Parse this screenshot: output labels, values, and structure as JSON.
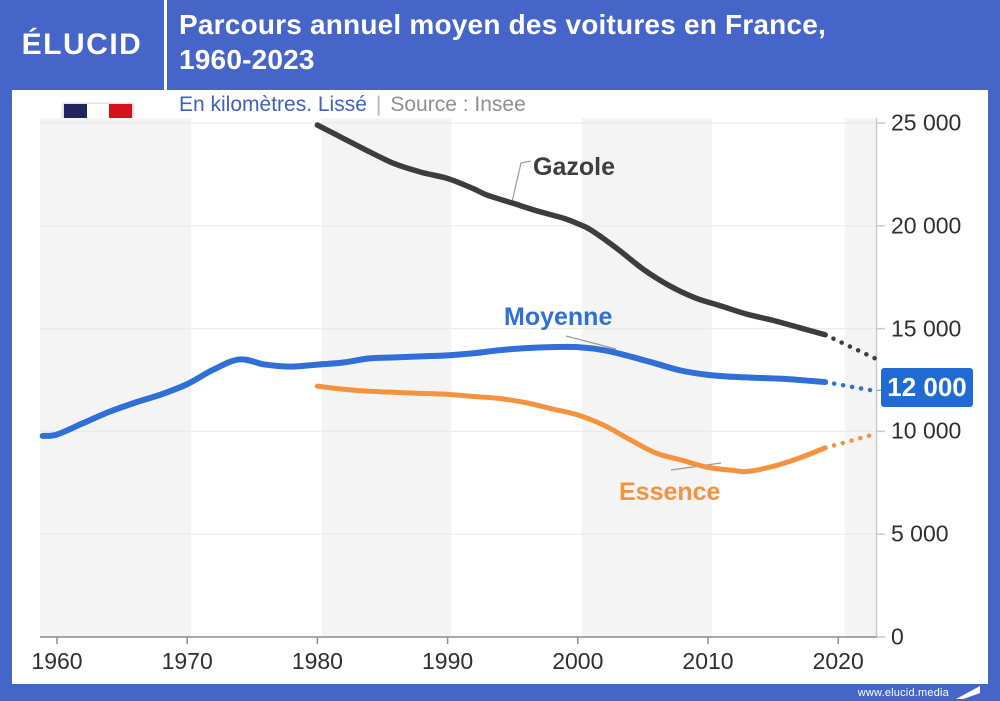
{
  "header": {
    "logo": "ÉLUCID",
    "title_line1": "Parcours annuel moyen des voitures en France,",
    "title_line2": "1960-2023"
  },
  "subtitle": {
    "unit": "En kilomètres. Lissé",
    "separator": "|",
    "source": "Source : Insee"
  },
  "footer": {
    "url": "www.elucid.media"
  },
  "colors": {
    "banner_blue": "#4565c9",
    "highlight_blue": "#1f6bd3",
    "moyenne_blue": "#2f6fd6",
    "essence_orange": "#f5923e",
    "gazole_dark": "#3d3d3d",
    "subtitle_blue": "#4060c0",
    "muted_gray": "#8e8e93",
    "band_gray": "#f4f4f5",
    "flag_navy": "#23265e",
    "flag_red": "#d6101f"
  },
  "chart_data": {
    "type": "line",
    "title": "Parcours annuel moyen des voitures en France, 1960-2023",
    "ylabel": "kilomètres par an",
    "source": "Insee",
    "xlim": [
      1958.8,
      2023.6
    ],
    "ylim": [
      0,
      25000
    ],
    "grid": true,
    "x_ticks": [
      1960,
      1970,
      1980,
      1990,
      2000,
      2010,
      2020
    ],
    "y_ticks": [
      {
        "value": 0,
        "label": "0"
      },
      {
        "value": 5000,
        "label": "5 000"
      },
      {
        "value": 10000,
        "label": "10 000"
      },
      {
        "value": 15000,
        "label": "15 000"
      },
      {
        "value": 20000,
        "label": "20 000"
      },
      {
        "value": 25000,
        "label": "25 000"
      }
    ],
    "series": [
      {
        "name": "Gazole",
        "style": "solid_then_dotted",
        "points": [
          [
            1980,
            24900
          ],
          [
            1982,
            24250
          ],
          [
            1984,
            23600
          ],
          [
            1986,
            23000
          ],
          [
            1988,
            22600
          ],
          [
            1990,
            22300
          ],
          [
            1992,
            21800
          ],
          [
            1993,
            21500
          ],
          [
            1995,
            21100
          ],
          [
            1997,
            20700
          ],
          [
            1999,
            20350
          ],
          [
            2000,
            20100
          ],
          [
            2001,
            19800
          ],
          [
            2003,
            18900
          ],
          [
            2005,
            17900
          ],
          [
            2007,
            17100
          ],
          [
            2009,
            16500
          ],
          [
            2011,
            16100
          ],
          [
            2013,
            15700
          ],
          [
            2015,
            15400
          ],
          [
            2017,
            15050
          ],
          [
            2019,
            14700
          ]
        ],
        "projection": [
          [
            2019,
            14700
          ],
          [
            2023,
            13500
          ]
        ]
      },
      {
        "name": "Moyenne",
        "style": "solid_then_dotted",
        "points": [
          [
            1958.9,
            9780
          ],
          [
            1960,
            9850
          ],
          [
            1962,
            10400
          ],
          [
            1964,
            10950
          ],
          [
            1966,
            11400
          ],
          [
            1968,
            11800
          ],
          [
            1970,
            12300
          ],
          [
            1972,
            13000
          ],
          [
            1974,
            13500
          ],
          [
            1976,
            13250
          ],
          [
            1978,
            13150
          ],
          [
            1980,
            13250
          ],
          [
            1982,
            13350
          ],
          [
            1984,
            13550
          ],
          [
            1986,
            13600
          ],
          [
            1988,
            13650
          ],
          [
            1990,
            13700
          ],
          [
            1992,
            13800
          ],
          [
            1994,
            13950
          ],
          [
            1996,
            14050
          ],
          [
            1998,
            14100
          ],
          [
            2000,
            14100
          ],
          [
            2002,
            13950
          ],
          [
            2004,
            13650
          ],
          [
            2006,
            13300
          ],
          [
            2008,
            12950
          ],
          [
            2010,
            12750
          ],
          [
            2012,
            12650
          ],
          [
            2014,
            12600
          ],
          [
            2016,
            12550
          ],
          [
            2018,
            12450
          ],
          [
            2019,
            12400
          ]
        ],
        "projection": [
          [
            2019,
            12400
          ],
          [
            2023,
            11950
          ]
        ]
      },
      {
        "name": "Essence",
        "style": "solid_then_dotted",
        "points": [
          [
            1980,
            12200
          ],
          [
            1982,
            12050
          ],
          [
            1984,
            11950
          ],
          [
            1986,
            11900
          ],
          [
            1988,
            11850
          ],
          [
            1990,
            11800
          ],
          [
            1992,
            11700
          ],
          [
            1994,
            11600
          ],
          [
            1996,
            11400
          ],
          [
            1998,
            11100
          ],
          [
            2000,
            10800
          ],
          [
            2002,
            10300
          ],
          [
            2004,
            9600
          ],
          [
            2006,
            8950
          ],
          [
            2008,
            8600
          ],
          [
            2010,
            8250
          ],
          [
            2012,
            8100
          ],
          [
            2013,
            8050
          ],
          [
            2015,
            8300
          ],
          [
            2017,
            8700
          ],
          [
            2019,
            9200
          ]
        ],
        "projection": [
          [
            2019,
            9200
          ],
          [
            2023,
            9900
          ]
        ]
      }
    ],
    "highlight": {
      "series": "Moyenne",
      "year": 2023,
      "value": 12000,
      "label": "12 000"
    }
  }
}
